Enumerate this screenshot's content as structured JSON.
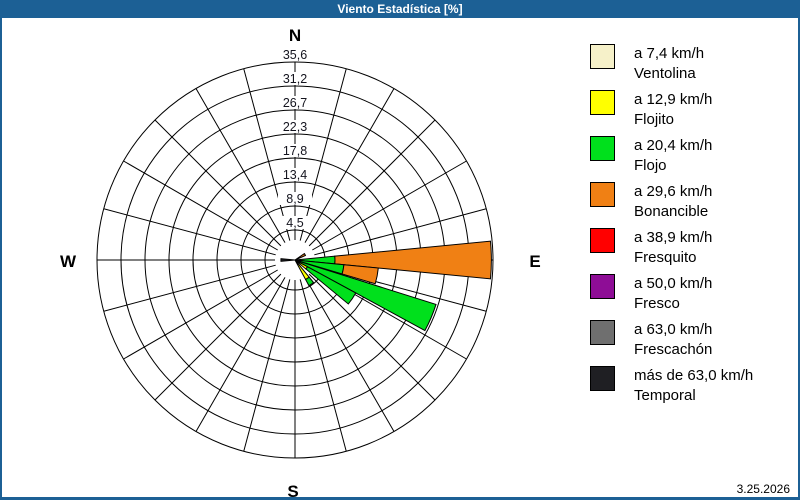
{
  "window": {
    "title": "Viento Estadística [%]",
    "status_date": "3.25.2026",
    "titlebar_color": "#1C6095"
  },
  "compass": {
    "n": "N",
    "e": "E",
    "s": "S",
    "w": "W"
  },
  "legend": {
    "items": [
      {
        "speed": "a 7,4 km/h",
        "name": "Ventolina",
        "color": "#F6F1C9"
      },
      {
        "speed": "a 12,9 km/h",
        "name": "Flojito",
        "color": "#FFFF00"
      },
      {
        "speed": "a 20,4 km/h",
        "name": "Flojo",
        "color": "#00E01C"
      },
      {
        "speed": "a 29,6 km/h",
        "name": "Bonancible",
        "color": "#F08014"
      },
      {
        "speed": "a 38,9 km/h",
        "name": "Fresquito",
        "color": "#FF0000"
      },
      {
        "speed": "a 50,0 km/h",
        "name": "Fresco",
        "color": "#8E0D96"
      },
      {
        "speed": "a 63,0 km/h",
        "name": "Frescachón",
        "color": "#6F6F6F"
      },
      {
        "speed": "más de 63,0 km/h",
        "name": "Temporal",
        "color": "#1F1F23"
      }
    ]
  },
  "chart_data": {
    "type": "bar",
    "subtype": "wind-rose-stacked",
    "title": "Viento Estadística [%]",
    "units": "%",
    "direction_labels": [
      "N",
      "E",
      "S",
      "W"
    ],
    "ring_labels": [
      "4,5",
      "8,9",
      "13,4",
      "17,8",
      "22,3",
      "26,7",
      "31,2",
      "35,6"
    ],
    "ring_values": [
      4.45,
      8.9,
      13.35,
      17.8,
      22.25,
      26.7,
      31.15,
      35.6
    ],
    "rmax": 35.6,
    "grid_sectors": 24,
    "grid_on": true,
    "legend_position": "right",
    "bars": [
      {
        "dir_deg": 90,
        "segments": [
          {
            "cls": "Flojo",
            "to": 6.3
          },
          {
            "cls": "Bonancible",
            "to": 35.3
          }
        ]
      },
      {
        "dir_deg": 101,
        "segments": [
          {
            "cls": "Flojo",
            "to": 8.0
          },
          {
            "cls": "Bonancible",
            "to": 14.4
          }
        ]
      },
      {
        "dir_deg": 113,
        "segments": [
          {
            "cls": "Flojo",
            "to": 26.3
          }
        ]
      },
      {
        "dir_deg": 124,
        "segments": [
          {
            "cls": "Flojito",
            "to": 1.5
          },
          {
            "cls": "Flojo",
            "to": 11.7
          }
        ]
      },
      {
        "dir_deg": 146,
        "segments": [
          {
            "cls": "Flojito",
            "to": 3.0
          },
          {
            "cls": "Flojo",
            "to": 4.3
          }
        ]
      },
      {
        "dir_deg": 61,
        "segments": [
          {
            "cls": "Bonancible",
            "to": 1.0
          }
        ]
      },
      {
        "dir_deg": 270,
        "segments": [
          {
            "cls": "Temporal",
            "to": 1.5
          }
        ]
      }
    ]
  }
}
